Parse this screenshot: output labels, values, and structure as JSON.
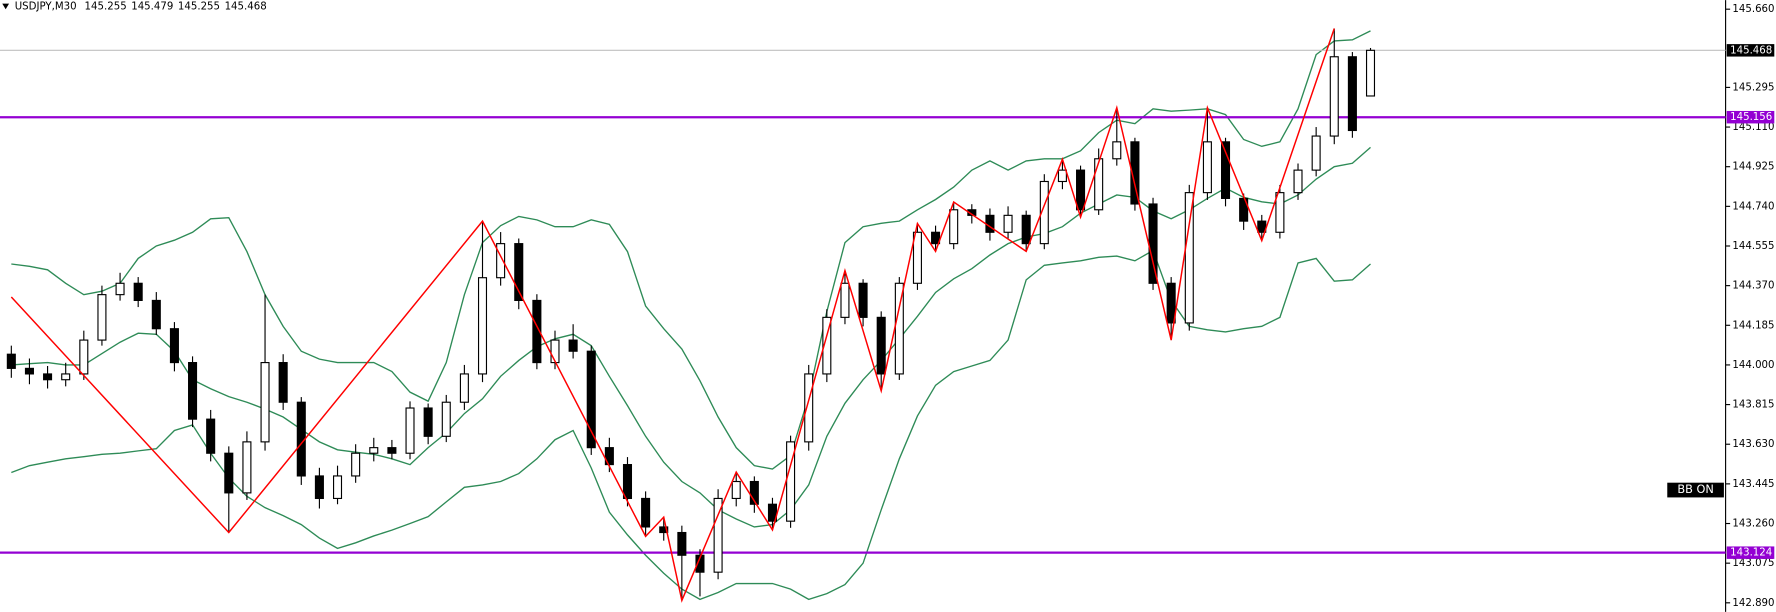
{
  "chart_data": {
    "type": "candlestick",
    "symbol": "USDJPY,M30",
    "header_values": [
      145.255,
      145.479,
      145.255,
      145.468
    ],
    "ylim": [
      142.848,
      145.702
    ],
    "yticks": [
      {
        "value": 145.66,
        "label": "145.660"
      },
      145.295,
      {
        "value": 145.11,
        "label": "145.110"
      },
      144.925,
      {
        "value": 144.74,
        "label": "144.740"
      },
      144.555,
      {
        "value": 144.37,
        "label": "144.370"
      },
      144.185,
      {
        "value": 144,
        "label": "144.000"
      },
      143.815,
      {
        "value": 143.63,
        "label": "143.630"
      },
      143.445,
      {
        "value": 143.26,
        "label": "143.260"
      },
      143.075,
      {
        "value": 142.89,
        "label": "142.890"
      }
    ],
    "open": [
      144.05,
      143.984,
      143.958,
      143.931,
      143.958,
      144.116,
      144.328,
      144.381,
      144.301,
      144.169,
      144.011,
      143.747,
      143.588,
      143.403,
      143.641,
      144.011,
      143.826,
      143.482,
      143.377,
      143.482,
      143.588,
      143.614,
      143.588,
      143.799,
      143.667,
      143.826,
      143.958,
      144.407,
      144.566,
      144.301,
      144.011,
      144.116,
      144.064,
      143.614,
      143.535,
      143.377,
      143.244,
      143.218,
      143.112,
      143.033,
      143.377,
      143.456,
      143.35,
      143.271,
      143.641,
      143.958,
      144.222,
      144.381,
      144.222,
      143.958,
      144.381,
      144.619,
      144.566,
      144.724,
      144.698,
      144.619,
      144.698,
      144.566,
      144.856,
      144.909,
      144.724,
      144.962,
      145.041,
      144.751,
      144.381,
      144.196,
      144.804,
      145.041,
      144.777,
      144.671,
      144.619,
      144.804,
      144.909,
      145.068,
      145.438,
      145.255
    ],
    "high": [
      144.09,
      144.03,
      143.995,
      144.01,
      144.16,
      144.37,
      144.43,
      144.41,
      144.34,
      144.2,
      144.04,
      143.79,
      143.62,
      143.69,
      144.328,
      144.05,
      143.85,
      143.52,
      143.53,
      143.63,
      143.66,
      143.65,
      143.83,
      143.82,
      143.86,
      144.0,
      144.671,
      144.62,
      144.59,
      144.33,
      144.16,
      144.19,
      144.09,
      143.66,
      143.57,
      143.41,
      143.29,
      143.25,
      143.14,
      143.42,
      143.5,
      143.48,
      143.38,
      143.67,
      144.0,
      144.26,
      144.44,
      144.4,
      144.25,
      144.41,
      144.66,
      144.65,
      144.76,
      144.75,
      144.73,
      144.74,
      144.72,
      144.89,
      144.96,
      144.93,
      145.01,
      145.2,
      145.06,
      144.78,
      144.41,
      144.84,
      145.2,
      145.06,
      144.8,
      144.7,
      144.84,
      144.94,
      145.11,
      145.57,
      145.46,
      145.479
    ],
    "low": [
      143.94,
      143.91,
      143.89,
      143.9,
      143.93,
      144.09,
      144.3,
      144.27,
      144.14,
      143.97,
      143.71,
      143.55,
      143.218,
      143.37,
      143.6,
      143.79,
      143.44,
      143.33,
      143.35,
      143.45,
      143.55,
      143.56,
      143.56,
      143.63,
      143.64,
      143.79,
      143.92,
      144.37,
      144.26,
      143.98,
      143.98,
      144.03,
      143.58,
      143.5,
      143.34,
      143.2,
      143.18,
      142.901,
      142.92,
      143.0,
      143.34,
      143.31,
      143.23,
      143.24,
      143.6,
      143.92,
      144.19,
      144.18,
      143.879,
      143.93,
      144.35,
      144.53,
      144.54,
      144.66,
      144.58,
      144.59,
      144.53,
      144.54,
      144.82,
      144.69,
      144.7,
      144.93,
      144.72,
      144.35,
      144.116,
      144.16,
      144.77,
      144.74,
      144.63,
      144.58,
      144.59,
      144.77,
      144.88,
      145.03,
      145.06,
      145.255
    ],
    "close": [
      143.984,
      143.958,
      143.931,
      143.958,
      144.116,
      144.328,
      144.381,
      144.301,
      144.169,
      144.011,
      143.747,
      143.588,
      143.403,
      143.641,
      144.011,
      143.826,
      143.482,
      143.377,
      143.482,
      143.588,
      143.614,
      143.588,
      143.799,
      143.667,
      143.826,
      143.958,
      144.407,
      144.566,
      144.301,
      144.011,
      144.116,
      144.064,
      143.614,
      143.535,
      143.377,
      143.244,
      143.218,
      143.112,
      143.033,
      143.377,
      143.456,
      143.35,
      143.271,
      143.641,
      143.958,
      144.222,
      144.381,
      144.222,
      143.958,
      144.381,
      144.619,
      144.566,
      144.724,
      144.698,
      144.619,
      144.698,
      144.566,
      144.856,
      144.909,
      144.724,
      144.962,
      145.041,
      144.751,
      144.381,
      144.196,
      144.804,
      145.041,
      144.777,
      144.671,
      144.619,
      144.804,
      144.909,
      145.068,
      145.438,
      145.094,
      145.468
    ],
    "candle_colors": {
      "up": "#ffffff",
      "down": "#000000",
      "outline": "#000000"
    },
    "bands": [
      {
        "color": "#2e8b57",
        "values": [
          144.471,
          144.46,
          144.444,
          144.381,
          144.328,
          144.344,
          144.381,
          144.497,
          144.555,
          144.582,
          144.619,
          144.682,
          144.687,
          144.529,
          144.328,
          144.18,
          144.064,
          144.027,
          144.011,
          144.011,
          144.011,
          143.969,
          143.873,
          143.831,
          144.011,
          144.328,
          144.571,
          144.65,
          144.693,
          144.677,
          144.645,
          144.645,
          144.677,
          144.656,
          144.529,
          144.275,
          144.169,
          144.074,
          143.926,
          143.757,
          143.614,
          143.53,
          143.514,
          143.577,
          143.852,
          144.249,
          144.571,
          144.645,
          144.661,
          144.671,
          144.724,
          144.772,
          144.83,
          144.909,
          144.952,
          144.909,
          144.952,
          144.962,
          144.962,
          144.999,
          145.084,
          145.142,
          145.126,
          145.195,
          145.184,
          145.189,
          145.195,
          145.168,
          145.052,
          145.02,
          145.041,
          145.195,
          145.448,
          145.512,
          145.517,
          145.559
        ]
      },
      {
        "color": "#2e8b57",
        "values": [
          144.0,
          144.006,
          144.011,
          144.0,
          144.0,
          144.053,
          144.106,
          144.148,
          144.143,
          144.064,
          143.931,
          143.889,
          143.852,
          143.826,
          143.794,
          143.757,
          143.699,
          143.641,
          143.604,
          143.593,
          143.583,
          143.562,
          143.535,
          143.614,
          143.683,
          143.773,
          143.842,
          143.947,
          144.021,
          144.085,
          144.122,
          144.143,
          144.09,
          143.947,
          143.81,
          143.667,
          143.546,
          143.456,
          143.403,
          143.324,
          143.281,
          143.244,
          143.255,
          143.324,
          143.44,
          143.667,
          143.821,
          143.931,
          144.021,
          144.122,
          144.227,
          144.338,
          144.402,
          144.449,
          144.513,
          144.566,
          144.597,
          144.613,
          144.645,
          144.708,
          144.751,
          144.793,
          144.782,
          144.719,
          144.682,
          144.724,
          144.777,
          144.825,
          144.782,
          144.761,
          144.751,
          144.793,
          144.867,
          144.925,
          144.941,
          145.015
        ]
      },
      {
        "color": "#2e8b57",
        "values": [
          143.498,
          143.53,
          143.546,
          143.562,
          143.572,
          143.583,
          143.588,
          143.599,
          143.609,
          143.694,
          143.72,
          143.588,
          143.472,
          143.387,
          143.334,
          143.297,
          143.255,
          143.192,
          143.144,
          143.17,
          143.202,
          143.229,
          143.26,
          143.292,
          143.361,
          143.429,
          143.44,
          143.456,
          143.493,
          143.562,
          143.651,
          143.694,
          143.519,
          143.313,
          143.207,
          143.112,
          143.028,
          142.954,
          142.906,
          142.938,
          142.98,
          142.98,
          142.98,
          142.954,
          142.906,
          142.933,
          142.975,
          143.075,
          143.324,
          143.562,
          143.762,
          143.905,
          143.969,
          143.995,
          144.021,
          144.116,
          144.397,
          144.465,
          144.476,
          144.486,
          144.502,
          144.508,
          144.486,
          144.534,
          144.301,
          144.18,
          144.164,
          144.154,
          144.169,
          144.18,
          144.222,
          144.476,
          144.497,
          144.391,
          144.397,
          144.471
        ]
      }
    ],
    "zigzag": {
      "color": "#ff0000",
      "x": [
        0,
        12,
        26,
        35,
        36,
        37,
        40,
        42,
        46,
        48,
        50,
        51,
        52,
        56,
        58,
        59,
        61,
        64,
        66,
        69,
        73
      ],
      "values": [
        144.317,
        143.218,
        144.671,
        143.2,
        143.29,
        142.901,
        143.5,
        143.23,
        144.44,
        143.879,
        144.66,
        144.53,
        144.76,
        144.53,
        144.96,
        144.69,
        145.2,
        144.116,
        145.2,
        144.58,
        145.57
      ]
    },
    "levels": [
      {
        "value": 145.156,
        "color": "#9400d3"
      },
      {
        "value": 143.124,
        "color": "#9400d3"
      }
    ],
    "annotation": "BB ON"
  }
}
